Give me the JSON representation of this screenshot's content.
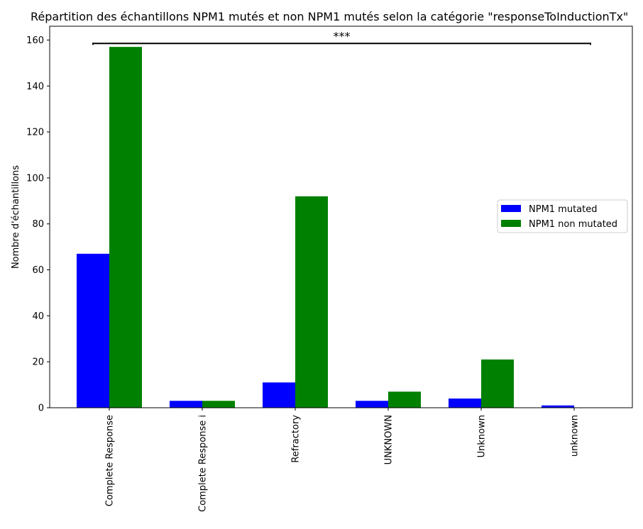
{
  "chart_data": {
    "type": "bar",
    "title": "Répartition des échantillons NPM1 mutés et non NPM1 mutés selon la catégorie \"responseToInductionTx\"",
    "xlabel": "",
    "ylabel": "Nombre d'échantillons",
    "categories": [
      "Complete Response",
      "Complete Response i",
      "Refractory",
      "UNKNOWN",
      "Unknown",
      "unknown"
    ],
    "series": [
      {
        "name": "NPM1 mutated",
        "color": "#0000ff",
        "values": [
          67,
          3,
          11,
          3,
          4,
          1
        ]
      },
      {
        "name": "NPM1 non mutated",
        "color": "#008000",
        "values": [
          157,
          3,
          92,
          7,
          21,
          0
        ]
      }
    ],
    "ylim": [
      0,
      166
    ],
    "yticks": [
      0,
      20,
      40,
      60,
      80,
      100,
      120,
      140,
      160
    ],
    "grid": false,
    "legend_placement": "center-right",
    "annotation": {
      "text": "***",
      "y": 158.5,
      "from_category": "Complete Response",
      "to_category": "unknown"
    }
  }
}
